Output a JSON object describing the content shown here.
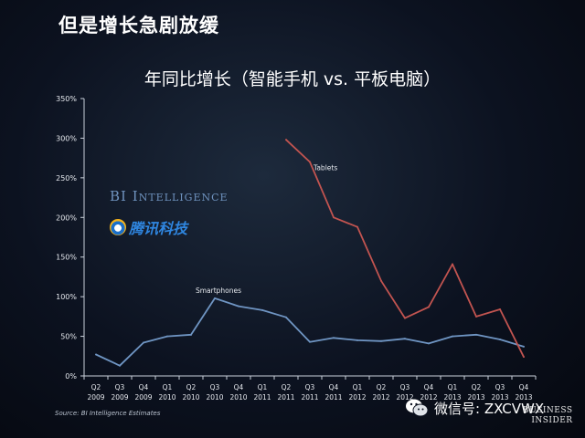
{
  "slide_title": "但是增长急剧放缓",
  "chart_data": {
    "type": "line",
    "title": "年同比增长（智能手机 vs. 平板电脑）",
    "categories": [
      [
        "Q2",
        "2009"
      ],
      [
        "Q3",
        "2009"
      ],
      [
        "Q4",
        "2009"
      ],
      [
        "Q1",
        "2010"
      ],
      [
        "Q2",
        "2010"
      ],
      [
        "Q3",
        "2010"
      ],
      [
        "Q4",
        "2010"
      ],
      [
        "Q1",
        "2011"
      ],
      [
        "Q2",
        "2011"
      ],
      [
        "Q3",
        "2011"
      ],
      [
        "Q4",
        "2011"
      ],
      [
        "Q1",
        "2012"
      ],
      [
        "Q2",
        "2012"
      ],
      [
        "Q3",
        "2012"
      ],
      [
        "Q4",
        "2012"
      ],
      [
        "Q1",
        "2013"
      ],
      [
        "Q2",
        "2013"
      ],
      [
        "Q3",
        "2013"
      ],
      [
        "Q4",
        "2013"
      ]
    ],
    "y_ticks": [
      "0%",
      "50%",
      "100%",
      "150%",
      "200%",
      "250%",
      "300%",
      "350%"
    ],
    "ylim": [
      0,
      350
    ],
    "series": [
      {
        "name": "Smartphones",
        "color": "#6f95c3",
        "values": [
          27,
          13,
          42,
          50,
          52,
          98,
          88,
          83,
          74,
          43,
          48,
          45,
          44,
          47,
          41,
          50,
          52,
          46,
          37
        ]
      },
      {
        "name": "Tablets",
        "color": "#c25450",
        "values": [
          null,
          null,
          null,
          null,
          null,
          null,
          null,
          null,
          298,
          270,
          200,
          188,
          120,
          73,
          87,
          141,
          75,
          84,
          24
        ]
      }
    ],
    "source": "Source: BI Intelligence Estimates"
  },
  "brand": {
    "bi_intelligence": "BI Intelligence",
    "tencent": "腾讯科技",
    "wechat": "微信号: ZXCVWX",
    "business_insider_1": "BUSINESS",
    "business_insider_2": "INSIDER"
  }
}
